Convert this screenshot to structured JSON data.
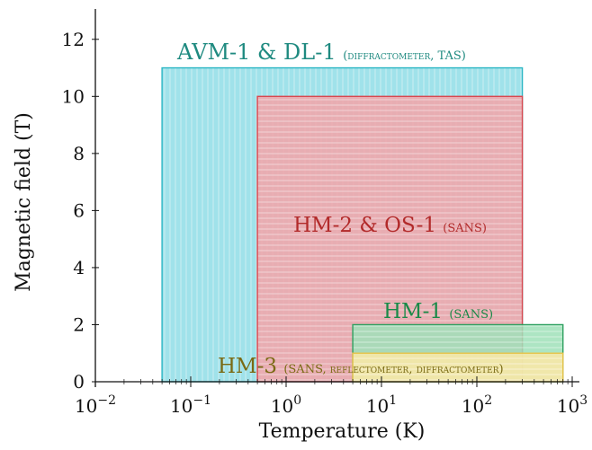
{
  "chart_data": {
    "type": "area",
    "xlabel": "Temperature (K)",
    "ylabel": "Magnetic field (T)",
    "x_scale": "log",
    "xlim": [
      0.01,
      1000
    ],
    "ylim": [
      0,
      13
    ],
    "x_ticks": [
      {
        "value": 0.01,
        "base": "10",
        "exp": "−2"
      },
      {
        "value": 0.1,
        "base": "10",
        "exp": "−1"
      },
      {
        "value": 1,
        "base": "10",
        "exp": "0"
      },
      {
        "value": 10,
        "base": "10",
        "exp": "1"
      },
      {
        "value": 100,
        "base": "10",
        "exp": "2"
      },
      {
        "value": 1000,
        "base": "10",
        "exp": "3"
      }
    ],
    "y_ticks": [
      0,
      2,
      4,
      6,
      8,
      10,
      12
    ],
    "series": [
      {
        "name": "AVM-1 & DL-1",
        "note": "(diffractometer, TAS)",
        "t_min": 0.05,
        "t_max": 300,
        "b_min": 0,
        "b_max": 11,
        "fill": "#8fdde6",
        "stroke": "#2bb6c4",
        "hatch": "vertical",
        "label_color": "#1f8a80"
      },
      {
        "name": "HM-2 & OS-1",
        "note": "(SANS)",
        "t_min": 0.5,
        "t_max": 300,
        "b_min": 0,
        "b_max": 10,
        "fill": "#f3a3a8",
        "stroke": "#d9474f",
        "hatch": "horizontal",
        "label_color": "#b22a2a"
      },
      {
        "name": "HM-1",
        "note": "(SANS)",
        "t_min": 5,
        "t_max": 800,
        "b_min": 0,
        "b_max": 2,
        "fill": "#9fe0b8",
        "stroke": "#2ea060",
        "hatch": "horizontal",
        "label_color": "#1a8a48"
      },
      {
        "name": "HM-3",
        "note": "(SANS, reflectometer, diffractometer)",
        "t_min": 5,
        "t_max": 800,
        "b_min": 0,
        "b_max": 1,
        "fill": "#fbe7a6",
        "stroke": "#e6c34a",
        "hatch": "horizontal",
        "label_color": "#7a6a14"
      }
    ]
  }
}
